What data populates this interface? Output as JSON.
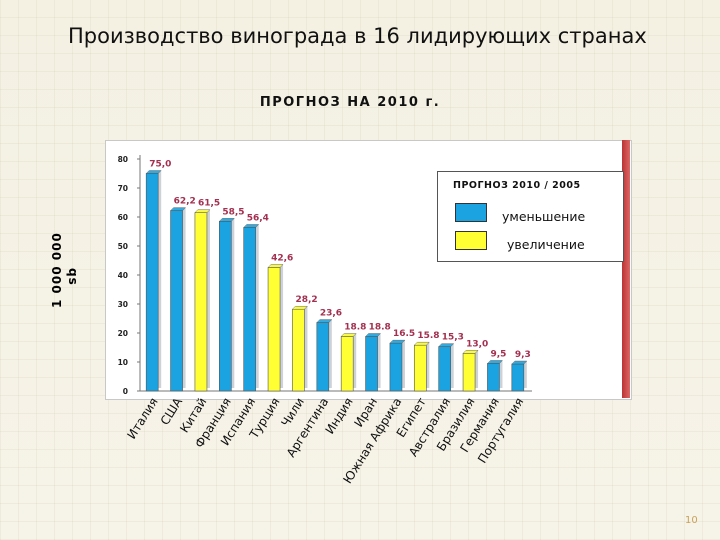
{
  "slide": {
    "title": "Производство винограда в 16 лидирующих странах",
    "page_number": "10"
  },
  "colors": {
    "decrease": "#1aa3e0",
    "increase": "#ffff33",
    "value_label": "#a33050"
  },
  "chart_data": {
    "type": "bar",
    "title": "ПРОГНОЗ НА 2010 г.",
    "ylabel_line1": "1 000 000",
    "ylabel_line2": "qs",
    "xlabel": "",
    "ylim": [
      0,
      80
    ],
    "yticks": [
      0,
      10,
      20,
      30,
      40,
      50,
      60,
      70,
      80
    ],
    "grid": false,
    "categories": [
      "Италия",
      "США",
      "Китай",
      "Франция",
      "Испания",
      "Турция",
      "Чили",
      "Аргентина",
      "Индия",
      "Иран",
      "Южная Африка",
      "Египет",
      "Австралия",
      "Бразилия",
      "Германия",
      "Португалия"
    ],
    "values": [
      75.0,
      62.2,
      61.5,
      58.5,
      56.4,
      42.6,
      28.2,
      23.6,
      18.8,
      18.8,
      16.5,
      15.8,
      15.3,
      13.0,
      9.5,
      9.3
    ],
    "value_labels": [
      "75,0",
      "62,2",
      "61,5",
      "58,5",
      "56,4",
      "42,6",
      "28,2",
      "23,6",
      "18.8",
      "18.8",
      "16.5",
      "15.8",
      "15,3",
      "13,0",
      "9,5",
      "9,3"
    ],
    "trend": [
      "decrease",
      "decrease",
      "increase",
      "decrease",
      "decrease",
      "increase",
      "increase",
      "decrease",
      "increase",
      "decrease",
      "decrease",
      "increase",
      "decrease",
      "increase",
      "decrease",
      "decrease"
    ],
    "legend": {
      "title": "ПРОГНОЗ 2010 / 2005",
      "placement": "top-right",
      "items": [
        {
          "key": "decrease",
          "label": "уменьшение"
        },
        {
          "key": "increase",
          "label": "увеличение"
        }
      ]
    }
  }
}
